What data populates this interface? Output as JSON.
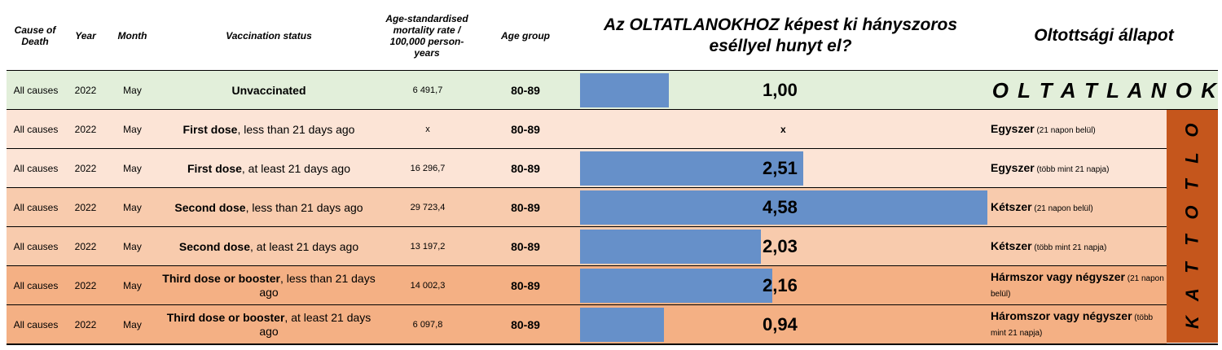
{
  "headers": {
    "cause": "Cause of Death",
    "year": "Year",
    "month": "Month",
    "vacc_status": "Vaccination status",
    "rate": "Age-standardised mortality rate / 100,000 person-years",
    "age_group": "Age group",
    "chart_title": "Az OLTATLANOKHOZ képest ki hányszoros eséllyel hunyt el?",
    "hun_status": "Oltottsági állapot"
  },
  "unvaccinated_banner": "O L T A T L A N O K",
  "vaccinated_banner_letters": [
    "O",
    "L",
    "T",
    "O",
    "T",
    "T",
    "A",
    "K"
  ],
  "rows": [
    {
      "cause": "All causes",
      "year": "2022",
      "month": "May",
      "status_bold": "Unvaccinated",
      "status_rest": "",
      "rate": "6 491,7",
      "age": "80-89",
      "ratio_label": "1,00",
      "hun_bold": "",
      "hun_small": ""
    },
    {
      "cause": "All causes",
      "year": "2022",
      "month": "May",
      "status_bold": "First dose",
      "status_rest": ", less than 21 days ago",
      "rate": "x",
      "age": "80-89",
      "ratio_label": "x",
      "hun_bold": "Egyszer",
      "hun_small": " (21 napon belül)"
    },
    {
      "cause": "All causes",
      "year": "2022",
      "month": "May",
      "status_bold": "First dose",
      "status_rest": ", at least 21 days ago",
      "rate": "16 296,7",
      "age": "80-89",
      "ratio_label": "2,51",
      "hun_bold": "Egyszer",
      "hun_small": " (több mint 21 napja)"
    },
    {
      "cause": "All causes",
      "year": "2022",
      "month": "May",
      "status_bold": "Second dose",
      "status_rest": ", less than 21 days ago",
      "rate": "29 723,4",
      "age": "80-89",
      "ratio_label": "4,58",
      "hun_bold": "Kétszer",
      "hun_small": " (21 napon belül)"
    },
    {
      "cause": "All causes",
      "year": "2022",
      "month": "May",
      "status_bold": "Second dose",
      "status_rest": ",  at least 21 days ago",
      "rate": "13 197,2",
      "age": "80-89",
      "ratio_label": "2,03",
      "hun_bold": "Kétszer",
      "hun_small": " (több mint 21 napja)"
    },
    {
      "cause": "All causes",
      "year": "2022",
      "month": "May",
      "status_bold": "Third dose or booster",
      "status_rest": ", less than 21 days ago",
      "rate": "14 002,3",
      "age": "80-89",
      "ratio_label": "2,16",
      "hun_bold": "Hármszor vagy négyszer",
      "hun_small": " (21 napon belül)"
    },
    {
      "cause": "All causes",
      "year": "2022",
      "month": "May",
      "status_bold": "Third dose or booster",
      "status_rest": ", at least 21 days ago",
      "rate": "6 097,8",
      "age": "80-89",
      "ratio_label": "0,94",
      "hun_bold": "Háromszor vagy négyszer",
      "hun_small": " (több mint 21 napja)"
    }
  ],
  "row_colors": [
    "#e2efda",
    "#fce4d6",
    "#fce4d6",
    "#f8cbad",
    "#f8cbad",
    "#f4b084",
    "#f4b084"
  ],
  "colors": {
    "bar": "#6690c9",
    "vaccinated_banner": "#c5561c"
  },
  "chart_data": {
    "type": "bar",
    "orientation": "horizontal",
    "title": "Az OLTATLANOKHOZ képest ki hányszoros eséllyel hunyt el?",
    "categories": [
      "Unvaccinated",
      "First dose, less than 21 days ago",
      "First dose, at least 21 days ago",
      "Second dose, less than 21 days ago",
      "Second dose,  at least 21 days ago",
      "Third dose or booster, less than 21 days ago",
      "Third dose or booster, at least 21 days ago"
    ],
    "values": [
      1.0,
      null,
      2.51,
      4.58,
      2.03,
      2.16,
      0.94
    ],
    "xlim": [
      0,
      4.58
    ]
  }
}
